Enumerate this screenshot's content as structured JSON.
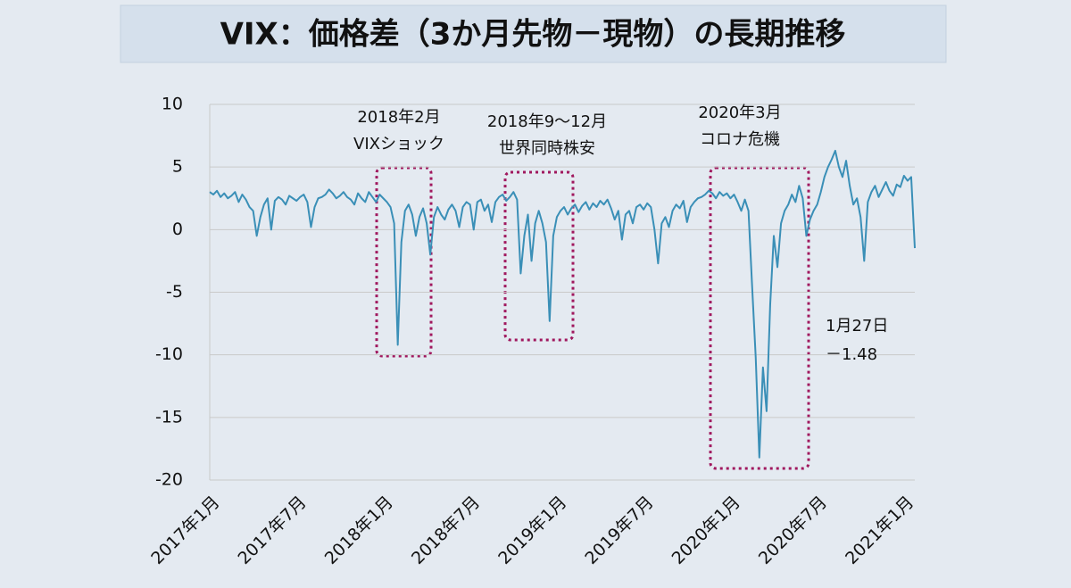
{
  "chart_data": {
    "type": "line",
    "title": "VIX：価格差（3か月先物－現物）の長期推移",
    "categories": [
      "2017年1月",
      null,
      null,
      null,
      null,
      null,
      null,
      null,
      null,
      null,
      null,
      null,
      null,
      null,
      null,
      null,
      null,
      null,
      null,
      null,
      null,
      null,
      null,
      null,
      "2017年7月",
      null,
      null,
      null,
      null,
      null,
      null,
      null,
      null,
      null,
      null,
      null,
      null,
      null,
      null,
      null,
      null,
      null,
      null,
      null,
      null,
      null,
      null,
      null,
      "2018年1月",
      null,
      null,
      null,
      null,
      null,
      null,
      null,
      null,
      null,
      null,
      null,
      null,
      null,
      null,
      null,
      null,
      null,
      null,
      null,
      null,
      null,
      null,
      null,
      "2018年7月",
      null,
      null,
      null,
      null,
      null,
      null,
      null,
      null,
      null,
      null,
      null,
      null,
      null,
      null,
      null,
      null,
      null,
      null,
      null,
      null,
      null,
      null,
      null,
      "2019年1月",
      null,
      null,
      null,
      null,
      null,
      null,
      null,
      null,
      null,
      null,
      null,
      null,
      null,
      null,
      null,
      null,
      null,
      null,
      null,
      null,
      null,
      null,
      null,
      "2019年7月",
      null,
      null,
      null,
      null,
      null,
      null,
      null,
      null,
      null,
      null,
      null,
      null,
      null,
      null,
      null,
      null,
      null,
      null,
      null,
      null,
      null,
      null,
      null,
      "2020年1月",
      null,
      null,
      null,
      null,
      null,
      null,
      null,
      null,
      null,
      null,
      null,
      null,
      null,
      null,
      null,
      null,
      null,
      null,
      null,
      null,
      null,
      null,
      null,
      "2020年7月",
      null,
      null,
      null,
      null,
      null,
      null,
      null,
      null,
      null,
      null,
      null,
      null,
      null,
      null,
      null,
      null,
      null,
      null,
      null,
      null,
      null,
      null,
      null,
      "2021年1月",
      null,
      null,
      null
    ],
    "values": [
      3.0,
      2.8,
      3.1,
      2.6,
      2.9,
      2.5,
      2.7,
      3.0,
      2.2,
      2.8,
      2.4,
      1.8,
      1.5,
      -0.5,
      1.0,
      2.0,
      2.5,
      0.0,
      2.3,
      2.6,
      2.4,
      2.0,
      2.7,
      2.5,
      2.3,
      2.6,
      2.8,
      2.2,
      0.2,
      1.8,
      2.5,
      2.6,
      2.8,
      3.2,
      2.9,
      2.5,
      2.7,
      3.0,
      2.6,
      2.4,
      2.0,
      2.9,
      2.5,
      2.2,
      3.0,
      2.6,
      2.2,
      2.8,
      2.5,
      2.2,
      1.8,
      0.5,
      -9.2,
      -1.0,
      1.5,
      2.0,
      1.2,
      -0.5,
      1.0,
      1.7,
      0.5,
      -2.0,
      1.0,
      1.8,
      1.2,
      0.8,
      1.6,
      2.0,
      1.5,
      0.2,
      1.8,
      2.2,
      2.0,
      0.0,
      2.2,
      2.4,
      1.5,
      2.0,
      0.6,
      2.2,
      2.6,
      2.8,
      2.3,
      2.6,
      3.0,
      2.4,
      -3.5,
      -0.5,
      1.2,
      -2.5,
      0.5,
      1.5,
      0.5,
      -1.0,
      -7.3,
      -0.5,
      1.0,
      1.5,
      1.8,
      1.2,
      1.7,
      2.0,
      1.4,
      1.9,
      2.2,
      1.6,
      2.1,
      1.8,
      2.3,
      2.0,
      2.4,
      1.7,
      0.8,
      1.5,
      -0.8,
      1.2,
      1.5,
      0.5,
      1.8,
      2.0,
      1.6,
      2.1,
      1.8,
      0.0,
      -2.7,
      0.5,
      1.0,
      0.2,
      1.5,
      2.0,
      1.7,
      2.3,
      0.6,
      1.8,
      2.2,
      2.5,
      2.6,
      2.8,
      3.1,
      2.9,
      2.5,
      3.0,
      2.7,
      2.9,
      2.5,
      2.8,
      2.2,
      1.5,
      2.4,
      1.5,
      -4.5,
      -10.2,
      -18.2,
      -11.0,
      -14.5,
      -6.0,
      -0.5,
      -3.0,
      0.5,
      1.5,
      2.0,
      2.8,
      2.2,
      3.5,
      2.5,
      -0.5,
      0.8,
      1.5,
      2.0,
      3.0,
      4.2,
      5.0,
      5.6,
      6.3,
      5.0,
      4.2,
      5.5,
      3.5,
      2.0,
      2.5,
      1.0,
      -2.5,
      2.2,
      3.0,
      3.5,
      2.6,
      3.2,
      3.8,
      3.1,
      2.7,
      3.6,
      3.4,
      4.3,
      3.9,
      4.2,
      -1.48
    ],
    "color": "#3a8fb7",
    "ylim": [
      -20,
      10
    ],
    "yticks": [
      -20,
      -15,
      -10,
      -5,
      0,
      5,
      10
    ],
    "grid": true,
    "annotations": [
      "2018年2月",
      "VIXショック",
      "2018年9～12月",
      "世界同時株安",
      "2020年3月",
      "コロナ危機",
      "1月27日",
      "－1.48"
    ]
  }
}
